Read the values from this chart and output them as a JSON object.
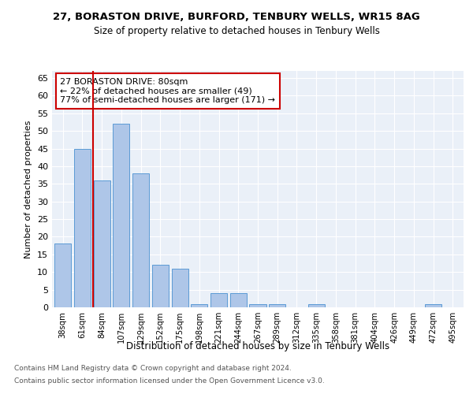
{
  "title1": "27, BORASTON DRIVE, BURFORD, TENBURY WELLS, WR15 8AG",
  "title2": "Size of property relative to detached houses in Tenbury Wells",
  "xlabel": "Distribution of detached houses by size in Tenbury Wells",
  "ylabel": "Number of detached properties",
  "bar_labels": [
    "38sqm",
    "61sqm",
    "84sqm",
    "107sqm",
    "129sqm",
    "152sqm",
    "175sqm",
    "198sqm",
    "221sqm",
    "244sqm",
    "267sqm",
    "289sqm",
    "312sqm",
    "335sqm",
    "358sqm",
    "381sqm",
    "404sqm",
    "426sqm",
    "449sqm",
    "472sqm",
    "495sqm"
  ],
  "bar_values": [
    18,
    45,
    36,
    52,
    38,
    12,
    11,
    1,
    4,
    4,
    1,
    1,
    0,
    1,
    0,
    0,
    0,
    0,
    0,
    1,
    0
  ],
  "bar_color": "#aec6e8",
  "bar_edge_color": "#5b9bd5",
  "vline_color": "#cc0000",
  "annotation_text": "27 BORASTON DRIVE: 80sqm\n← 22% of detached houses are smaller (49)\n77% of semi-detached houses are larger (171) →",
  "annotation_box_color": "#ffffff",
  "annotation_box_edge_color": "#cc0000",
  "ylim": [
    0,
    67
  ],
  "yticks": [
    0,
    5,
    10,
    15,
    20,
    25,
    30,
    35,
    40,
    45,
    50,
    55,
    60,
    65
  ],
  "footnote1": "Contains HM Land Registry data © Crown copyright and database right 2024.",
  "footnote2": "Contains public sector information licensed under the Open Government Licence v3.0.",
  "plot_bg_color": "#eaf0f8"
}
